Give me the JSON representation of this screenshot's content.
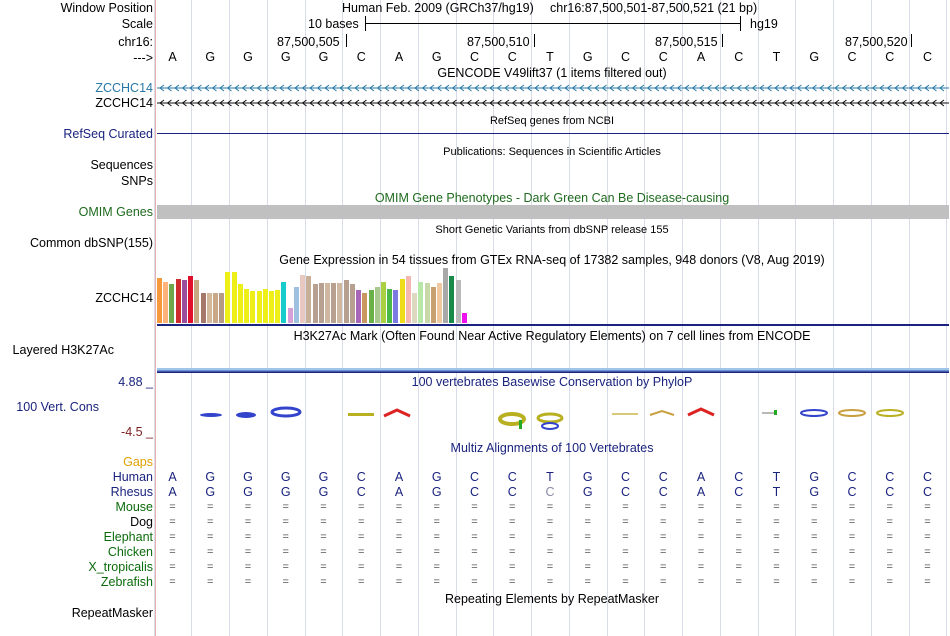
{
  "labels": {
    "window_position": "Window Position",
    "scale": "Scale",
    "chrom": "chr16:",
    "arrow": "--->",
    "gencode_1": "ZCCHC14",
    "gencode_2": "ZCCHC14",
    "refseq": "RefSeq Curated",
    "sequences": "Sequences",
    "snps": "SNPs",
    "omim": "OMIM Genes",
    "common_dbsnp": "Common dbSNP(155)",
    "gtex": "ZCCHC14",
    "h3k27ac": "Layered H3K27Ac",
    "cons_max": "4.88 _",
    "cons_name": "100 Vert. Cons",
    "cons_min": "-4.5 _",
    "gaps": "Gaps"
  },
  "header": {
    "assembly": "Human Feb. 2009 (GRCh37/hg19)",
    "position": "chr16:87,500,501-87,500,521 (21 bp)",
    "scale_text": "10 bases",
    "scale_db": "hg19",
    "ticks": [
      "87,500,505",
      "87,500,510",
      "87,500,515",
      "87,500,520"
    ]
  },
  "sequence": {
    "bases": [
      "A",
      "G",
      "G",
      "G",
      "G",
      "C",
      "A",
      "G",
      "C",
      "C",
      "T",
      "G",
      "C",
      "C",
      "A",
      "C",
      "T",
      "G",
      "C",
      "C",
      "C"
    ],
    "rhesus": [
      "A",
      "G",
      "G",
      "G",
      "G",
      "C",
      "A",
      "G",
      "C",
      "C",
      "C",
      "G",
      "C",
      "C",
      "A",
      "C",
      "T",
      "G",
      "C",
      "C",
      "C"
    ]
  },
  "tracks": {
    "gencode_title": "GENCODE V49lift37 (1 items filtered out)",
    "refseq_title": "RefSeq genes from NCBI",
    "publications_title": "Publications: Sequences in Scientific Articles",
    "omim_title": "OMIM Gene Phenotypes - Dark Green Can Be Disease-causing",
    "snp_title": "Short Genetic Variants from dbSNP release 155",
    "gtex_title": "Gene Expression in 54 tissues from GTEx RNA-seq of 17382 samples, 948 donors (V8, Aug 2019)",
    "h3k27ac_title": "H3K27Ac Mark (Often Found Near Active Regulatory Elements) on 7 cell lines from ENCODE",
    "phylop_title": "100 vertebrates Basewise Conservation by PhyloP",
    "multiz_title": "Multiz Alignments of 100 Vertebrates",
    "repeat_title": "Repeating Elements by RepeatMasker"
  },
  "species": [
    "Human",
    "Rhesus",
    "Mouse",
    "Dog",
    "Elephant",
    "Chicken",
    "X_tropicalis",
    "Zebrafish"
  ],
  "repeatmasker_label": "RepeatMasker",
  "gtex_expression": [
    {
      "value": 0.82,
      "color": "#f59a3c"
    },
    {
      "value": 0.75,
      "color": "#ffb27a"
    },
    {
      "value": 0.7,
      "color": "#6fa84a"
    },
    {
      "value": 0.8,
      "color": "#cf2d2d"
    },
    {
      "value": 0.78,
      "color": "#9b4f9b"
    },
    {
      "value": 0.86,
      "color": "#e0102c"
    },
    {
      "value": 0.78,
      "color": "#c8a882"
    },
    {
      "value": 0.55,
      "color": "#a6786a"
    },
    {
      "value": 0.55,
      "color": "#d4b89a"
    },
    {
      "value": 0.55,
      "color": "#c9a888"
    },
    {
      "value": 0.55,
      "color": "#b59a86"
    },
    {
      "value": 0.92,
      "color": "#eeee18"
    },
    {
      "value": 0.92,
      "color": "#eeee18"
    },
    {
      "value": 0.7,
      "color": "#eeee18"
    },
    {
      "value": 0.62,
      "color": "#eeee18"
    },
    {
      "value": 0.58,
      "color": "#eeee18"
    },
    {
      "value": 0.58,
      "color": "#eeee18"
    },
    {
      "value": 0.62,
      "color": "#eeee18"
    },
    {
      "value": 0.58,
      "color": "#eeee18"
    },
    {
      "value": 0.6,
      "color": "#eeee18"
    },
    {
      "value": 0.75,
      "color": "#18cccc"
    },
    {
      "value": 0.28,
      "color": "#d8a0d8"
    },
    {
      "value": 0.65,
      "color": "#a0c0e0"
    },
    {
      "value": 0.88,
      "color": "#e8c8c0"
    },
    {
      "value": 0.85,
      "color": "#c8b098"
    },
    {
      "value": 0.7,
      "color": "#b8a090"
    },
    {
      "value": 0.72,
      "color": "#b8a090"
    },
    {
      "value": 0.72,
      "color": "#d0b8a0"
    },
    {
      "value": 0.72,
      "color": "#b8a090"
    },
    {
      "value": 0.72,
      "color": "#d0b8a0"
    },
    {
      "value": 0.78,
      "color": "#b8a090"
    },
    {
      "value": 0.7,
      "color": "#b8a090"
    },
    {
      "value": 0.6,
      "color": "#a866b8"
    },
    {
      "value": 0.55,
      "color": "#c89860"
    },
    {
      "value": 0.6,
      "color": "#6ab048"
    },
    {
      "value": 0.65,
      "color": "#a8c890"
    },
    {
      "value": 0.75,
      "color": "#a8d040"
    },
    {
      "value": 0.62,
      "color": "#4ab848"
    },
    {
      "value": 0.6,
      "color": "#7a7ae0"
    },
    {
      "value": 0.8,
      "color": "#eedc18"
    },
    {
      "value": 0.86,
      "color": "#f4b8b0"
    },
    {
      "value": 0.55,
      "color": "#ddd8c0"
    },
    {
      "value": 0.75,
      "color": "#b8e8a8"
    },
    {
      "value": 0.72,
      "color": "#c8d8a8"
    },
    {
      "value": 0.65,
      "color": "#c8a070"
    },
    {
      "value": 0.72,
      "color": "#f0c8a0"
    },
    {
      "value": 1.0,
      "color": "#a8a8a8"
    },
    {
      "value": 0.85,
      "color": "#1a8a4a"
    },
    {
      "value": 0.78,
      "color": "#bababa"
    },
    {
      "value": 0.18,
      "color": "#ee10ee"
    }
  ],
  "colors": {
    "gencode_1": "#2778a6",
    "gencode_2": "#111111",
    "refseq": "#1a237e",
    "omim_bar": "#c0c0c0",
    "label_separator": "#e8b0b0"
  }
}
